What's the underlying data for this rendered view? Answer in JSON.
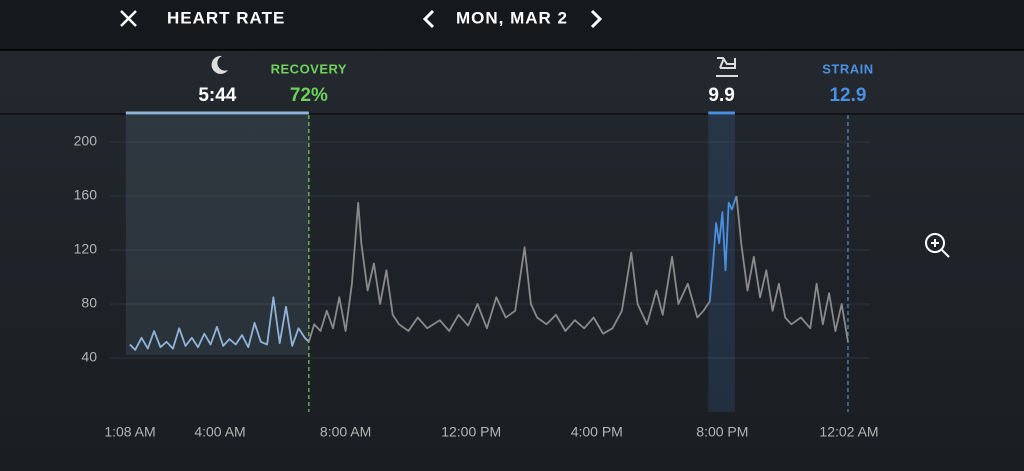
{
  "header": {
    "title": "HEART RATE",
    "date": "MON, MAR 2"
  },
  "chart_data": {
    "type": "line",
    "xlim": [
      1.133,
      24.033
    ],
    "ylim": [
      0,
      220
    ],
    "xticks": [
      {
        "value": 1.133,
        "label": "1:08 AM"
      },
      {
        "value": 4,
        "label": "4:00 AM"
      },
      {
        "value": 8,
        "label": "8:00 AM"
      },
      {
        "value": 12,
        "label": "12:00 PM"
      },
      {
        "value": 16,
        "label": "4:00 PM"
      },
      {
        "value": 20,
        "label": "8:00 PM"
      },
      {
        "value": 24.033,
        "label": "12:02 AM"
      }
    ],
    "yticks": [
      40,
      80,
      120,
      160,
      200
    ],
    "grid": true,
    "sleep": {
      "label": "5:44",
      "start": 1.0,
      "end": 6.83,
      "color": "#8fb3d9"
    },
    "recovery": {
      "title": "RECOVERY",
      "label": "72%",
      "at": 6.83,
      "color": "#6fd15a"
    },
    "activity": {
      "label": "9.9",
      "start": 19.55,
      "end": 20.4,
      "color": "#4a90e2"
    },
    "strain": {
      "title": "STRAIN",
      "label": "12.9",
      "at": 24.0,
      "color": "#4a90e2"
    },
    "series": [
      {
        "color": "#8fb3d9",
        "x": [
          1.13,
          1.3,
          1.5,
          1.7,
          1.9,
          2.1,
          2.3,
          2.5,
          2.7,
          2.9,
          3.1,
          3.3,
          3.5,
          3.7,
          3.9,
          4.1,
          4.3,
          4.5,
          4.7,
          4.9,
          5.1,
          5.3,
          5.5,
          5.7,
          5.9,
          6.1,
          6.3,
          6.5,
          6.7,
          6.83
        ],
        "values": [
          50,
          46,
          55,
          47,
          60,
          48,
          52,
          47,
          62,
          49,
          55,
          48,
          58,
          50,
          63,
          49,
          54,
          50,
          57,
          48,
          66,
          52,
          50,
          85,
          51,
          78,
          49,
          62,
          55,
          52
        ]
      },
      {
        "color": "#8a8a8a",
        "x": [
          6.83,
          7.0,
          7.2,
          7.4,
          7.6,
          7.8,
          8.0,
          8.2,
          8.4,
          8.5,
          8.7,
          8.9,
          9.1,
          9.3,
          9.5,
          9.7,
          10.0,
          10.3,
          10.6,
          11.0,
          11.3,
          11.6,
          11.9,
          12.2,
          12.5,
          12.8,
          13.1,
          13.4,
          13.7,
          13.9,
          14.1,
          14.4,
          14.7,
          15.0,
          15.3,
          15.6,
          15.9,
          16.2,
          16.5,
          16.8,
          17.1,
          17.3,
          17.6,
          17.9,
          18.1,
          18.4,
          18.6,
          18.9,
          19.2,
          19.4,
          19.6
        ],
        "values": [
          52,
          65,
          60,
          75,
          62,
          85,
          60,
          95,
          155,
          125,
          90,
          110,
          80,
          105,
          72,
          65,
          60,
          70,
          62,
          68,
          60,
          72,
          64,
          80,
          62,
          85,
          70,
          75,
          122,
          80,
          70,
          65,
          72,
          60,
          68,
          62,
          70,
          58,
          62,
          75,
          118,
          80,
          65,
          90,
          72,
          115,
          80,
          95,
          70,
          75,
          82
        ]
      },
      {
        "color": "#4a90e2",
        "x": [
          19.6,
          19.7,
          19.8,
          19.9,
          20.0,
          20.1,
          20.2,
          20.3,
          20.45
        ],
        "values": [
          82,
          110,
          140,
          125,
          148,
          105,
          155,
          150,
          160
        ]
      },
      {
        "color": "#8a8a8a",
        "x": [
          20.45,
          20.6,
          20.8,
          21.0,
          21.2,
          21.4,
          21.6,
          21.8,
          22.0,
          22.2,
          22.5,
          22.8,
          23.0,
          23.2,
          23.4,
          23.6,
          23.8,
          24.0
        ],
        "values": [
          160,
          125,
          90,
          115,
          85,
          105,
          75,
          95,
          70,
          65,
          70,
          62,
          95,
          65,
          88,
          60,
          80,
          52
        ]
      }
    ]
  }
}
